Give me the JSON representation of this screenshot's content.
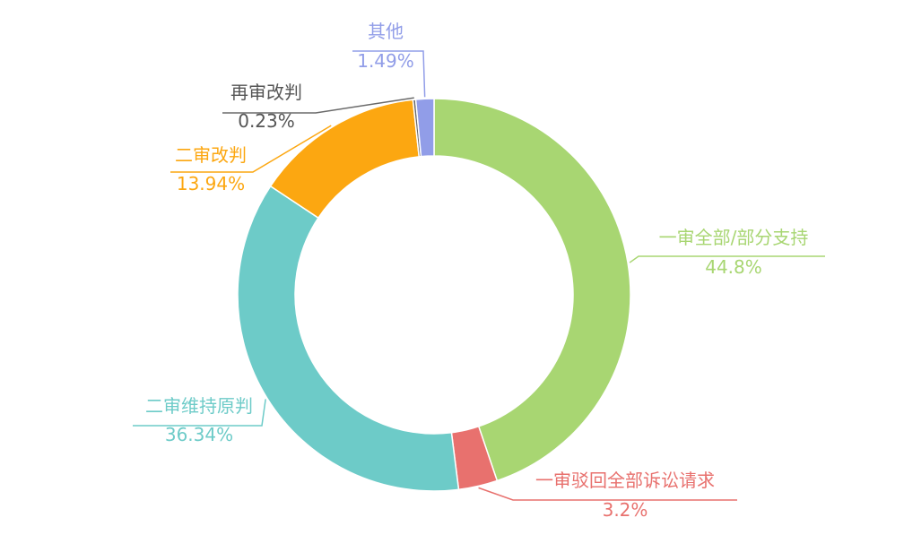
{
  "chart_data": {
    "type": "pie",
    "title": "",
    "unit": "%",
    "series": [
      {
        "name": "一审全部/部分支持",
        "value": 44.8,
        "value_label": "44.8%",
        "color": "#a8d672"
      },
      {
        "name": "一审驳回全部诉讼请求",
        "value": 3.2,
        "value_label": "3.2%",
        "color": "#e8716e"
      },
      {
        "name": "二审维持原判",
        "value": 36.34,
        "value_label": "36.34%",
        "color": "#6dcbc8"
      },
      {
        "name": "二审改判",
        "value": 13.94,
        "value_label": "13.94%",
        "color": "#fca711"
      },
      {
        "name": "再审改判",
        "value": 0.23,
        "value_label": "0.23%",
        "color": "#6a6a6a"
      },
      {
        "name": "其他",
        "value": 1.49,
        "value_label": "1.49%",
        "color": "#919de8"
      }
    ]
  }
}
